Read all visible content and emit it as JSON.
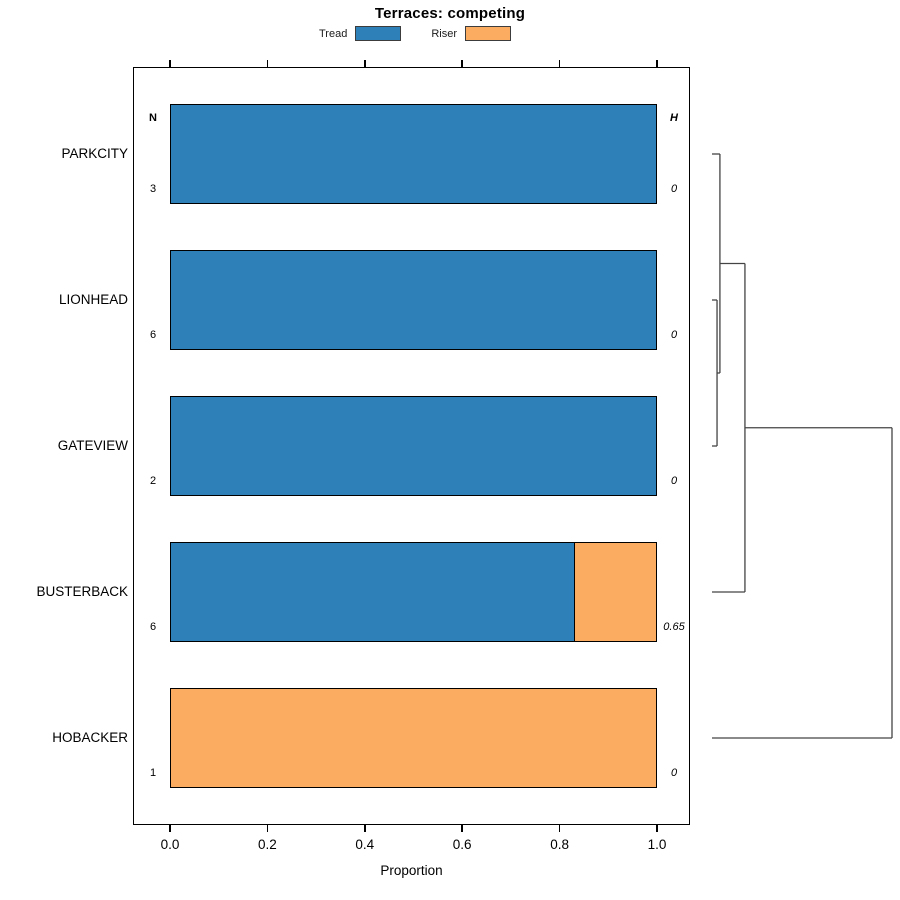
{
  "chart_data": {
    "type": "bar",
    "orientation": "horizontal",
    "stacked": true,
    "title": "Terraces: competing",
    "xlabel": "Proportion",
    "xlim": [
      0,
      1
    ],
    "xticks": [
      0,
      0.2,
      0.4,
      0.6,
      0.8,
      1.0
    ],
    "xtick_labels": [
      "0.0",
      "0.2",
      "0.4",
      "0.6",
      "0.8",
      "1.0"
    ],
    "grid": false,
    "legend_position": "top-center",
    "categories": [
      "PARKCITY",
      "LIONHEAD",
      "GATEVIEW",
      "BUSTERBACK",
      "HOBACKER"
    ],
    "series": [
      {
        "name": "Tread",
        "color": "#2d81b8",
        "values": [
          1.0,
          1.0,
          1.0,
          0.833,
          0.0
        ]
      },
      {
        "name": "Riser",
        "color": "#fcac61",
        "values": [
          0.0,
          0.0,
          0.0,
          0.167,
          1.0
        ]
      }
    ],
    "n_column": {
      "header": "N",
      "values": [
        "3",
        "6",
        "2",
        "6",
        "1"
      ]
    },
    "h_column": {
      "header": "H",
      "values": [
        "0",
        "0",
        "0",
        "0.65",
        "0"
      ]
    },
    "dendrogram": {
      "side": "right",
      "leaf_order": [
        "PARKCITY",
        "LIONHEAD",
        "GATEVIEW",
        "BUSTERBACK",
        "HOBACKER"
      ],
      "merges": [
        {
          "a": "LIONHEAD",
          "b": "GATEVIEW",
          "height": 0.028
        },
        {
          "a": "PARKCITY",
          "b": "merge0",
          "height": 0.044
        },
        {
          "a": "merge1",
          "b": "BUSTERBACK",
          "height": 0.183
        },
        {
          "a": "merge2",
          "b": "HOBACKER",
          "height": 1.0
        }
      ],
      "line_color": "#444444"
    }
  }
}
